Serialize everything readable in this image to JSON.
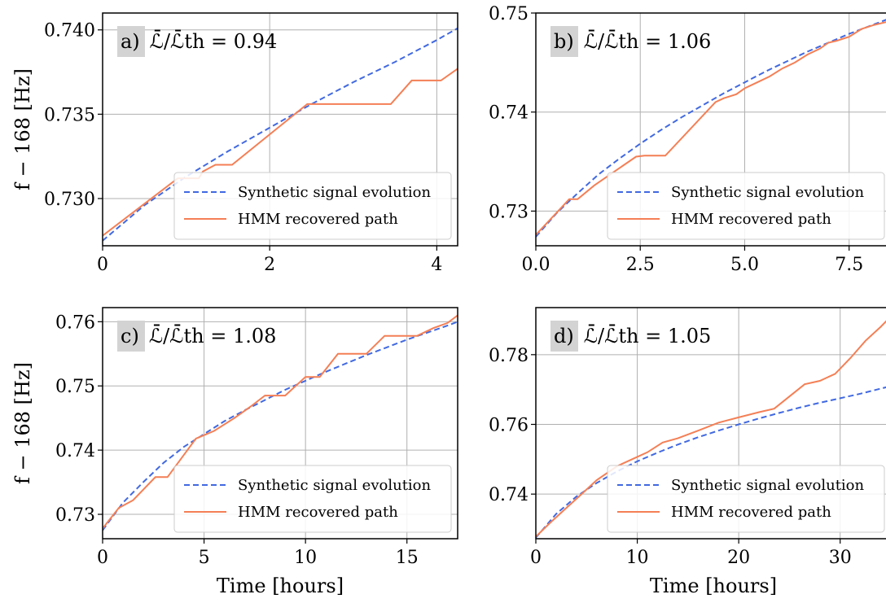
{
  "figure": {
    "colors": {
      "synthetic": "#4169e1",
      "hmm": "#f47f55",
      "grid": "#b0b0b0",
      "label_box": "#d3d3d3"
    }
  },
  "chart_data": [
    {
      "type": "line",
      "annotation": "a)  ℒ̄/ℒ̄th = 0.94",
      "xlabel": "",
      "ylabel": "f − 168 [Hz]",
      "xlim": [
        0,
        4.25
      ],
      "ylim": [
        0.7272,
        0.741
      ],
      "xticks": [
        0,
        2,
        4
      ],
      "xtick_labels": [
        "0",
        "2",
        "4"
      ],
      "yticks": [
        0.73,
        0.735,
        0.74
      ],
      "ytick_labels": [
        "0.730",
        "0.735",
        "0.740"
      ],
      "legend": [
        "Synthetic signal evolution",
        "HMM recovered path"
      ],
      "legend_position": "lower-right",
      "series": [
        {
          "name": "Synthetic signal evolution",
          "style": "dashed",
          "x": [
            0,
            0.5,
            1.0,
            1.5,
            2.0,
            2.5,
            3.0,
            3.5,
            4.0,
            4.25
          ],
          "y": [
            0.7275,
            0.7296,
            0.7313,
            0.7328,
            0.7342,
            0.7356,
            0.7369,
            0.7381,
            0.7394,
            0.7401
          ]
        },
        {
          "name": "HMM recovered path",
          "style": "solid",
          "x": [
            0,
            0.9,
            1.0,
            1.15,
            1.2,
            1.35,
            1.55,
            2.45,
            2.55,
            3.45,
            3.7,
            4.0,
            4.05,
            4.25
          ],
          "y": [
            0.7278,
            0.7312,
            0.7312,
            0.7312,
            0.7316,
            0.732,
            0.732,
            0.7356,
            0.7356,
            0.7356,
            0.737,
            0.737,
            0.737,
            0.7377
          ]
        }
      ]
    },
    {
      "type": "line",
      "annotation": "b)  ℒ̄/ℒ̄th = 1.06",
      "xlabel": "",
      "ylabel": "",
      "xlim": [
        0,
        8.5
      ],
      "ylim": [
        0.7265,
        0.75
      ],
      "xticks": [
        0,
        2.5,
        5.0,
        7.5
      ],
      "xtick_labels": [
        "0.0",
        "2.5",
        "5.0",
        "7.5"
      ],
      "yticks": [
        0.73,
        0.74,
        0.75
      ],
      "ytick_labels": [
        "0.73",
        "0.74",
        "0.75"
      ],
      "legend": [
        "Synthetic signal evolution",
        "HMM recovered path"
      ],
      "legend_position": "lower-right",
      "series": [
        {
          "name": "Synthetic signal evolution",
          "style": "dashed",
          "x": [
            0,
            0.5,
            1,
            1.5,
            2,
            2.5,
            3,
            3.5,
            4,
            4.5,
            5,
            5.5,
            6,
            6.5,
            7,
            7.5,
            8,
            8.5
          ],
          "y": [
            0.7274,
            0.7298,
            0.7318,
            0.7337,
            0.7353,
            0.7368,
            0.7382,
            0.7395,
            0.7407,
            0.7419,
            0.743,
            0.7441,
            0.7451,
            0.7461,
            0.747,
            0.7479,
            0.7487,
            0.7495
          ]
        },
        {
          "name": "HMM recovered path",
          "style": "solid",
          "x": [
            0,
            0.8,
            1.0,
            1.4,
            2.4,
            2.6,
            3.1,
            4.3,
            4.5,
            4.8,
            5.0,
            5.3,
            5.6,
            5.9,
            6.2,
            6.5,
            6.8,
            7.0,
            7.2,
            7.5,
            7.8,
            8.1,
            8.5
          ],
          "y": [
            0.7276,
            0.7312,
            0.7312,
            0.7326,
            0.7355,
            0.7356,
            0.7356,
            0.741,
            0.7414,
            0.7418,
            0.7424,
            0.743,
            0.7436,
            0.7444,
            0.745,
            0.7458,
            0.7464,
            0.747,
            0.7472,
            0.7476,
            0.7484,
            0.7488,
            0.7492
          ]
        }
      ]
    },
    {
      "type": "line",
      "annotation": "c)  ℒ̄/ℒ̄th = 1.08",
      "xlabel": "Time [hours]",
      "ylabel": "f − 168 [Hz]",
      "xlim": [
        0,
        17.5
      ],
      "ylim": [
        0.7262,
        0.7622
      ],
      "xticks": [
        0,
        5,
        10,
        15
      ],
      "xtick_labels": [
        "0",
        "5",
        "10",
        "15"
      ],
      "yticks": [
        0.73,
        0.74,
        0.75,
        0.76
      ],
      "ytick_labels": [
        "0.73",
        "0.74",
        "0.75",
        "0.76"
      ],
      "legend": [
        "Synthetic signal evolution",
        "HMM recovered path"
      ],
      "legend_position": "lower-right",
      "series": [
        {
          "name": "Synthetic signal evolution",
          "style": "dashed",
          "x": [
            0,
            1,
            2,
            3,
            4,
            5,
            6,
            7,
            8,
            9,
            10,
            11,
            12,
            13,
            14,
            15,
            16,
            17,
            17.5
          ],
          "y": [
            0.7275,
            0.7318,
            0.735,
            0.738,
            0.7405,
            0.7425,
            0.7445,
            0.7462,
            0.7478,
            0.7494,
            0.7508,
            0.7522,
            0.7535,
            0.7548,
            0.756,
            0.7572,
            0.7583,
            0.7594,
            0.76
          ]
        },
        {
          "name": "HMM recovered path",
          "style": "solid",
          "x": [
            0,
            0.8,
            1.5,
            2.6,
            3.2,
            4.6,
            5.5,
            6.5,
            7.3,
            8.0,
            9.0,
            10.0,
            10.7,
            11.6,
            13.0,
            13.9,
            15.5,
            16.3,
            17.0,
            17.5
          ],
          "y": [
            0.7278,
            0.731,
            0.7322,
            0.7358,
            0.7358,
            0.7418,
            0.743,
            0.745,
            0.7468,
            0.7485,
            0.7485,
            0.7514,
            0.7514,
            0.755,
            0.755,
            0.7578,
            0.7578,
            0.759,
            0.7598,
            0.761
          ]
        }
      ]
    },
    {
      "type": "line",
      "annotation": "d)  ℒ̄/ℒ̄th = 1.05",
      "xlabel": "Time [hours]",
      "ylabel": "",
      "xlim": [
        0,
        35
      ],
      "ylim": [
        0.7272,
        0.7935
      ],
      "xticks": [
        0,
        10,
        20,
        30
      ],
      "xtick_labels": [
        "0",
        "10",
        "20",
        "30"
      ],
      "yticks": [
        0.74,
        0.76,
        0.78
      ],
      "ytick_labels": [
        "0.74",
        "0.76",
        "0.78"
      ],
      "legend": [
        "Synthetic signal evolution",
        "HMM recovered path"
      ],
      "legend_position": "lower-right",
      "series": [
        {
          "name": "Synthetic signal evolution",
          "style": "dashed",
          "x": [
            0,
            2,
            4,
            6,
            8,
            10,
            12,
            14,
            16,
            18,
            20,
            22,
            24,
            26,
            28,
            30,
            32,
            35
          ],
          "y": [
            0.7275,
            0.7343,
            0.7393,
            0.7432,
            0.7465,
            0.7494,
            0.7519,
            0.7542,
            0.7563,
            0.7582,
            0.76,
            0.7617,
            0.7633,
            0.7648,
            0.7662,
            0.7675,
            0.7688,
            0.771
          ]
        },
        {
          "name": "HMM recovered path",
          "style": "solid",
          "x": [
            0,
            1.5,
            3,
            4.5,
            6,
            8,
            9.5,
            11,
            12.5,
            14,
            16,
            18,
            20,
            22,
            23.5,
            25,
            26.5,
            28,
            29.5,
            31,
            32.5,
            34,
            35
          ],
          "y": [
            0.7278,
            0.732,
            0.736,
            0.74,
            0.744,
            0.748,
            0.75,
            0.752,
            0.7548,
            0.756,
            0.7582,
            0.7605,
            0.762,
            0.7635,
            0.7645,
            0.768,
            0.7715,
            0.7725,
            0.7745,
            0.779,
            0.784,
            0.788,
            0.791
          ]
        }
      ]
    }
  ]
}
